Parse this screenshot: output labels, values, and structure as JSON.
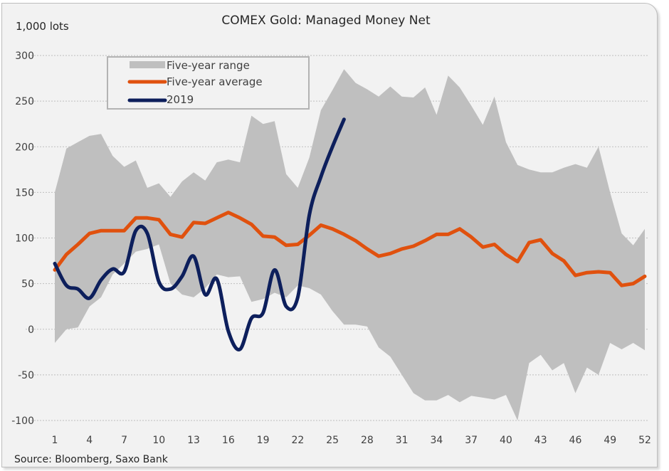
{
  "chart_data": {
    "type": "line",
    "title": "COMEX Gold: Managed Money Net",
    "ylabel": "1,000 lots",
    "xlabel": "",
    "source": "Source: Bloomberg, Saxo Bank",
    "ylim": [
      -100,
      300
    ],
    "xlim": [
      1,
      52
    ],
    "yticks": [
      300,
      250,
      200,
      150,
      100,
      50,
      0,
      -50,
      -100
    ],
    "xticks": [
      1,
      4,
      7,
      10,
      13,
      16,
      19,
      22,
      25,
      28,
      31,
      34,
      37,
      40,
      43,
      46,
      49,
      52
    ],
    "grid": "horizontal-dotted",
    "legend": {
      "placement": "top-left",
      "entries": [
        "Five-year range",
        "Five-year average",
        "2019"
      ]
    },
    "colors": {
      "range": "#bfbfbf",
      "average": "#e0510e",
      "y2019": "#0d1f5c",
      "background": "#f2f2f2",
      "grid": "#bfbfbf"
    },
    "x": [
      1,
      2,
      3,
      4,
      5,
      6,
      7,
      8,
      9,
      10,
      11,
      12,
      13,
      14,
      15,
      16,
      17,
      18,
      19,
      20,
      21,
      22,
      23,
      24,
      25,
      26,
      27,
      28,
      29,
      30,
      31,
      32,
      33,
      34,
      35,
      36,
      37,
      38,
      39,
      40,
      41,
      42,
      43,
      44,
      45,
      46,
      47,
      48,
      49,
      50,
      51,
      52
    ],
    "series": [
      {
        "name": "Five-year range (max)",
        "kind": "range-upper",
        "values": [
          150,
          198,
          205,
          212,
          214,
          190,
          178,
          185,
          155,
          160,
          145,
          162,
          172,
          163,
          183,
          186,
          183,
          234,
          225,
          228,
          170,
          155,
          188,
          240,
          262,
          285,
          270,
          263,
          255,
          266,
          255,
          254,
          265,
          235,
          278,
          265,
          245,
          224,
          255,
          205,
          180,
          175,
          172,
          172,
          177,
          181,
          177,
          200,
          150,
          105,
          92,
          110
        ]
      },
      {
        "name": "Five-year range (min)",
        "kind": "range-lower",
        "values": [
          -15,
          0,
          2,
          25,
          35,
          60,
          72,
          85,
          88,
          93,
          50,
          38,
          35,
          45,
          60,
          57,
          58,
          30,
          33,
          40,
          35,
          48,
          45,
          38,
          20,
          5,
          5,
          3,
          -20,
          -30,
          -50,
          -70,
          -78,
          -78,
          -72,
          -80,
          -73,
          -75,
          -77,
          -72,
          -100,
          -37,
          -28,
          -45,
          -37,
          -70,
          -42,
          -50,
          -15,
          -22,
          -15,
          -23
        ]
      },
      {
        "name": "Five-year average",
        "kind": "line",
        "values": [
          65,
          82,
          93,
          105,
          108,
          108,
          108,
          122,
          122,
          120,
          104,
          101,
          117,
          116,
          122,
          128,
          122,
          115,
          102,
          101,
          92,
          93,
          103,
          114,
          110,
          104,
          97,
          88,
          80,
          83,
          88,
          91,
          97,
          104,
          104,
          110,
          101,
          90,
          93,
          82,
          74,
          95,
          98,
          83,
          75,
          59,
          62,
          63,
          62,
          48,
          50,
          58
        ]
      },
      {
        "name": "2019",
        "kind": "line",
        "values": [
          72,
          48,
          44,
          34,
          54,
          66,
          63,
          108,
          105,
          52,
          44,
          58,
          80,
          38,
          55,
          -2,
          -22,
          12,
          18,
          65,
          25,
          35,
          125,
          167,
          200,
          230
        ]
      }
    ]
  }
}
